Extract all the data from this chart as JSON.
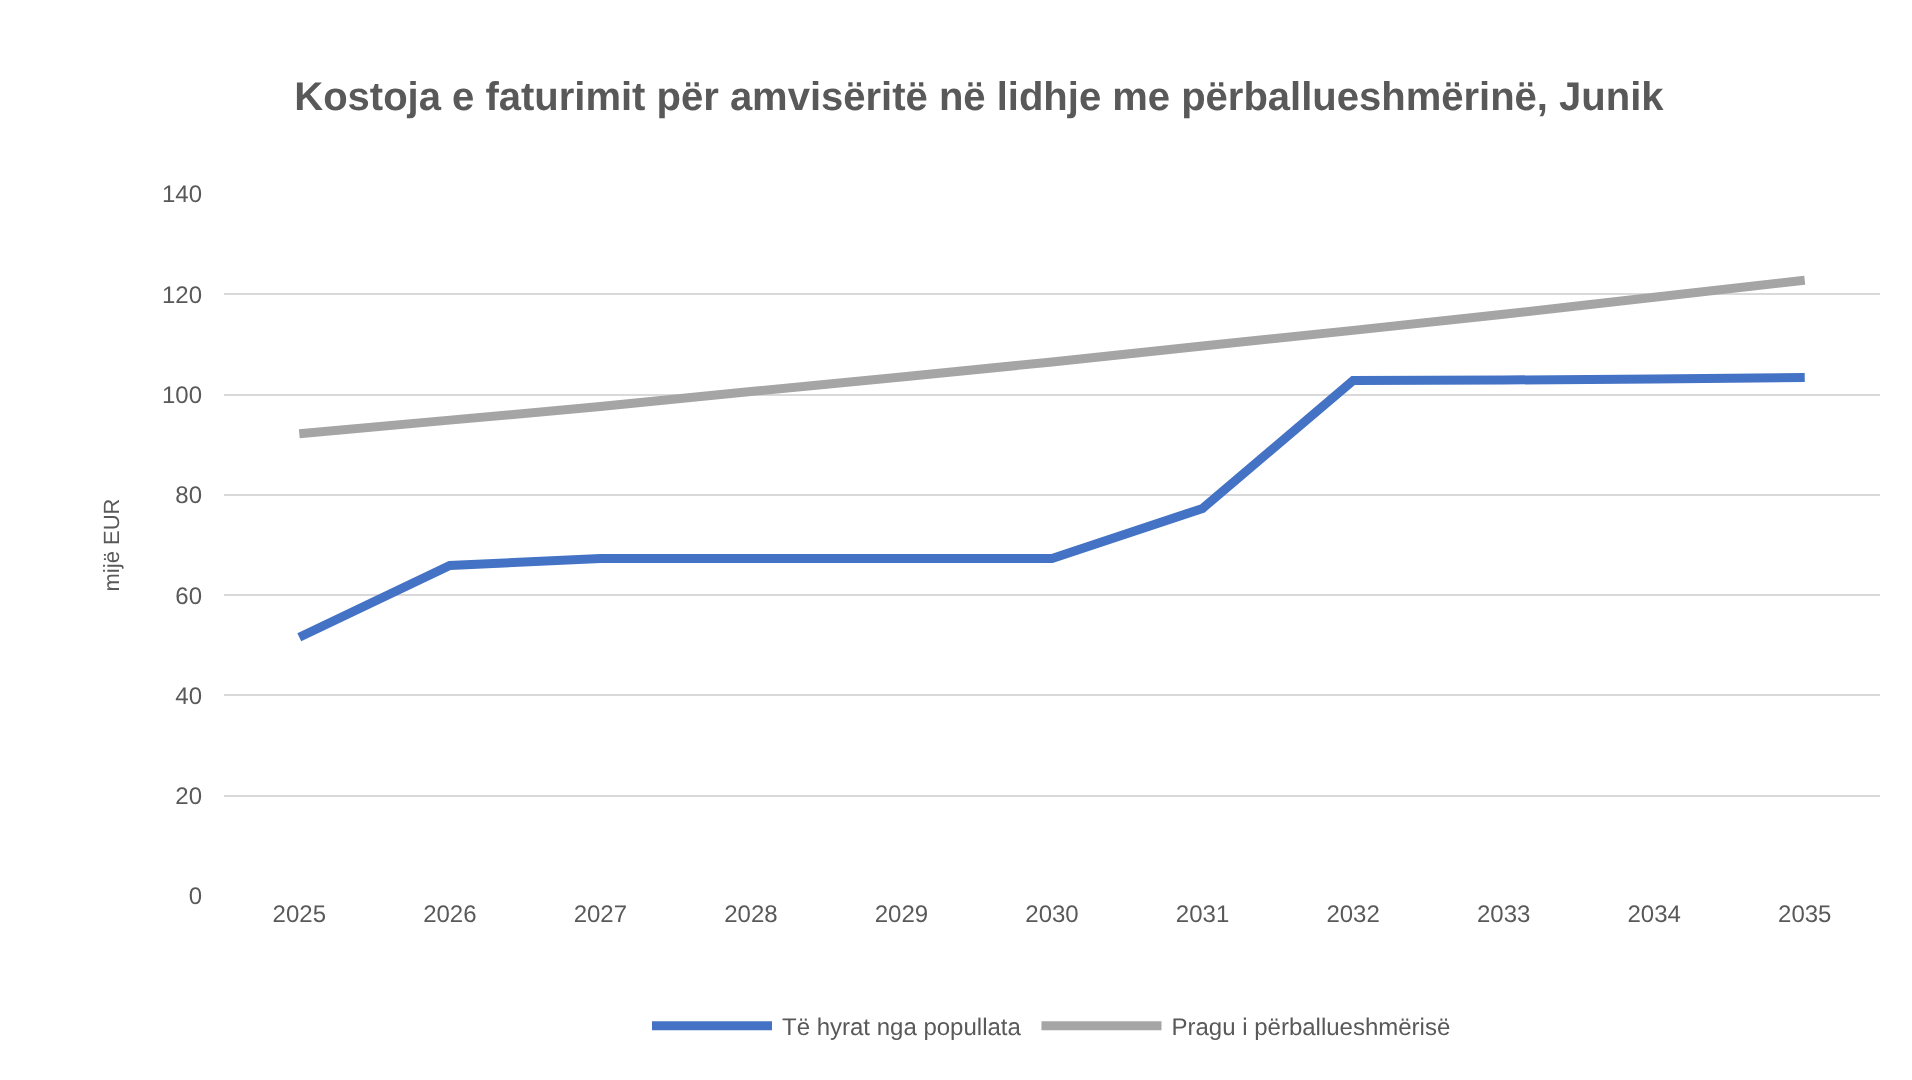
{
  "chart_data": {
    "type": "line",
    "title": "Kostoja e faturimit për amvisëritë në lidhje me përballueshmërinë, Junik",
    "ylabel": "mijë EUR",
    "categories": [
      "2025",
      "2026",
      "2027",
      "2028",
      "2029",
      "2030",
      "2031",
      "2032",
      "2033",
      "2034",
      "2035"
    ],
    "series": [
      {
        "name": "Të hyrat nga popullata",
        "color": "#4472c4",
        "values": [
          51.6,
          65.9,
          67.3,
          67.3,
          67.3,
          67.3,
          77.3,
          102.8,
          102.9,
          103.1,
          103.4
        ]
      },
      {
        "name": "Pragu i përballueshmërisë",
        "color": "#a5a5a5",
        "values": [
          92.2,
          94.9,
          97.6,
          100.6,
          103.5,
          106.5,
          109.7,
          112.8,
          116.0,
          119.4,
          122.8
        ]
      }
    ],
    "ylim": [
      0,
      140
    ],
    "yticks": [
      0,
      20,
      40,
      60,
      80,
      100,
      120,
      140
    ],
    "grid": "y",
    "legend": "bottom"
  }
}
